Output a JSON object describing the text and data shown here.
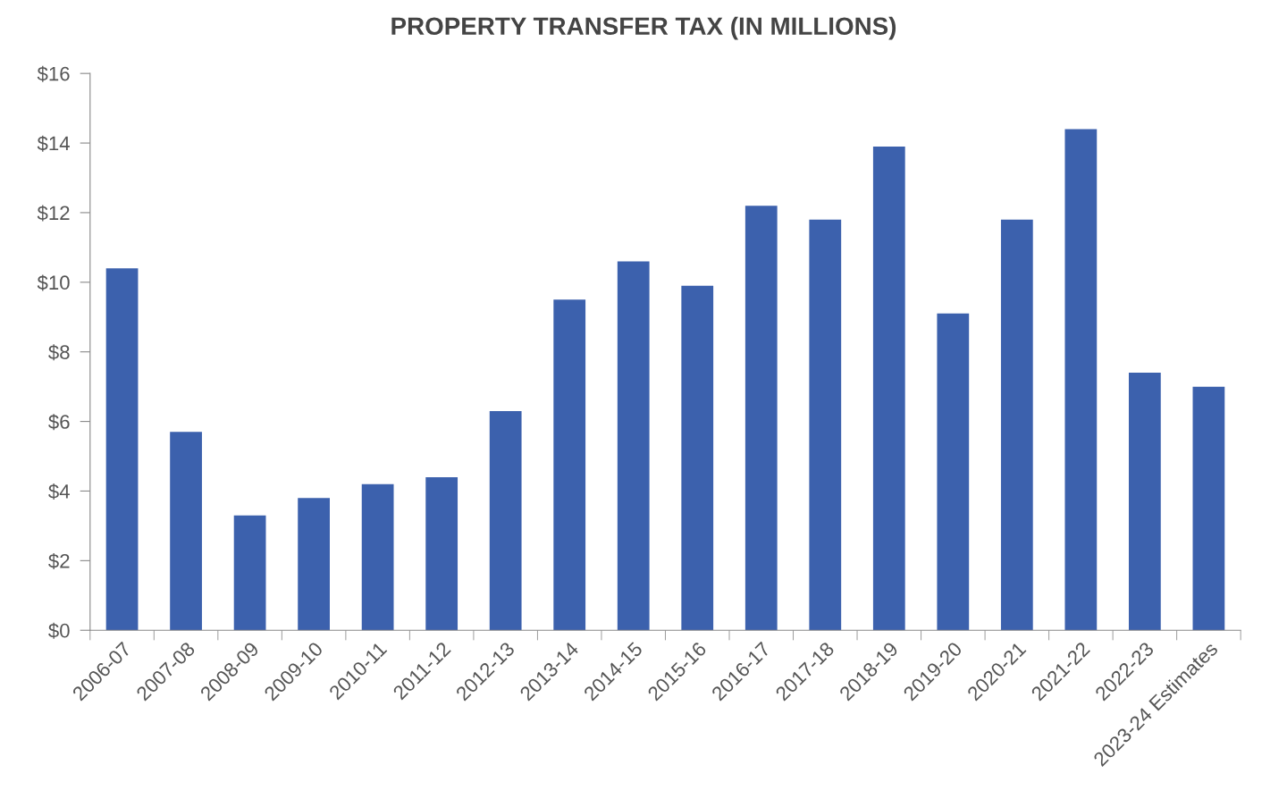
{
  "chart_data": {
    "type": "bar",
    "title": "PROPERTY TRANSFER TAX (IN MILLIONS)",
    "categories": [
      "2006-07",
      "2007-08",
      "2008-09",
      "2009-10",
      "2010-11",
      "2011-12",
      "2012-13",
      "2013-14",
      "2014-15",
      "2015-16",
      "2016-17",
      "2017-18",
      "2018-19",
      "2019-20",
      "2020-21",
      "2021-22",
      "2022-23",
      "2023-24 Estimates"
    ],
    "values": [
      10.4,
      5.7,
      3.3,
      3.8,
      4.2,
      4.4,
      6.3,
      9.5,
      10.6,
      9.9,
      12.2,
      11.8,
      13.9,
      9.1,
      11.8,
      14.4,
      7.4,
      7.0
    ],
    "color": "#3c61ad",
    "ylim": [
      0,
      16
    ],
    "yticks": [
      {
        "value": 0,
        "label": "$0"
      },
      {
        "value": 2,
        "label": "$2"
      },
      {
        "value": 4,
        "label": "$4"
      },
      {
        "value": 6,
        "label": "$6"
      },
      {
        "value": 8,
        "label": "$8"
      },
      {
        "value": 10,
        "label": "$10"
      },
      {
        "value": 12,
        "label": "$12"
      },
      {
        "value": 14,
        "label": "$14"
      },
      {
        "value": 16,
        "label": "$16"
      }
    ],
    "grid": false,
    "legend": false
  }
}
